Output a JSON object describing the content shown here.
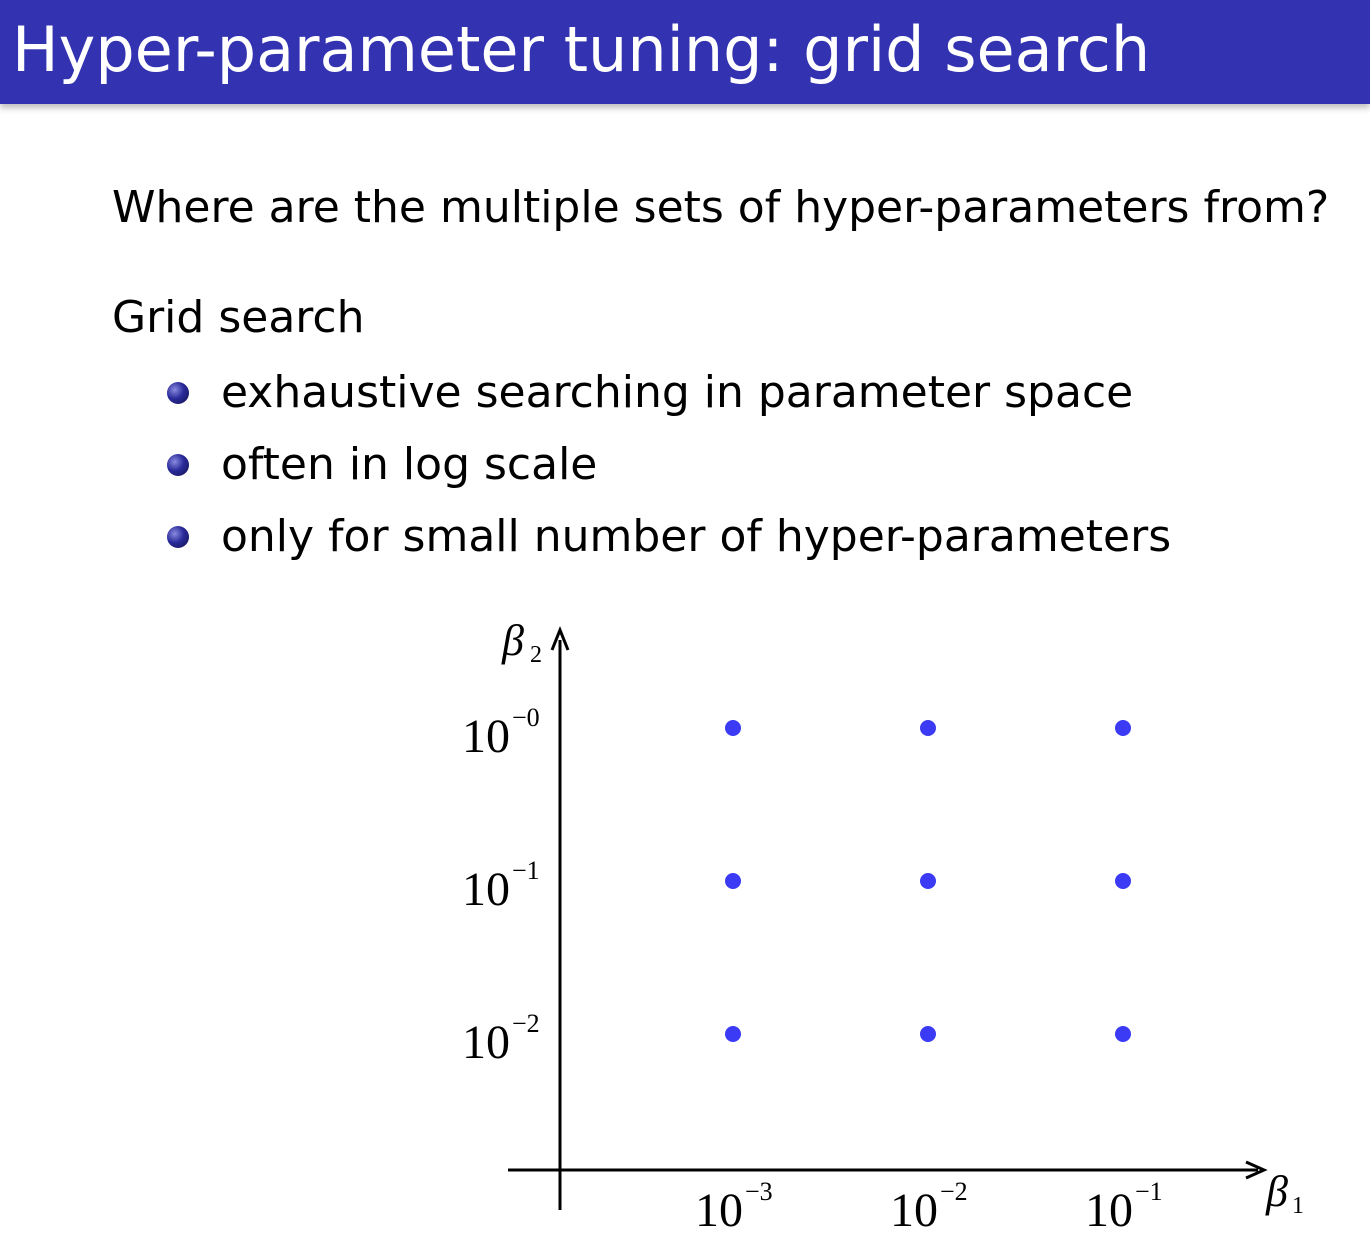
{
  "slide": {
    "title": "Hyper-parameter tuning: grid search",
    "question": "Where are the multiple sets of hyper-parameters from?",
    "subheading": "Grid search",
    "bullets": [
      "exhaustive searching in parameter space",
      "often in log scale",
      "only for small number of hyper-parameters"
    ],
    "colors": {
      "header": "#3333b2",
      "title_text": "#ffffff",
      "points": "#3b3bf5"
    }
  },
  "chart_data": {
    "type": "scatter",
    "xlabel": "β",
    "xlabel_sub": "1",
    "ylabel": "β",
    "ylabel_sub": "2",
    "x_scale": "log",
    "y_scale": "log",
    "x_ticks": [
      {
        "value": 0.001,
        "base": "10",
        "exp": "−3"
      },
      {
        "value": 0.01,
        "base": "10",
        "exp": "−2"
      },
      {
        "value": 0.1,
        "base": "10",
        "exp": "−1"
      }
    ],
    "y_ticks": [
      {
        "value": 0.01,
        "base": "10",
        "exp": "−2"
      },
      {
        "value": 0.1,
        "base": "10",
        "exp": "−1"
      },
      {
        "value": 1,
        "base": "10",
        "exp": "−0"
      }
    ],
    "points": [
      {
        "x": 0.001,
        "y": 1
      },
      {
        "x": 0.01,
        "y": 1
      },
      {
        "x": 0.1,
        "y": 1
      },
      {
        "x": 0.001,
        "y": 0.1
      },
      {
        "x": 0.01,
        "y": 0.1
      },
      {
        "x": 0.1,
        "y": 0.1
      },
      {
        "x": 0.001,
        "y": 0.01
      },
      {
        "x": 0.01,
        "y": 0.01
      },
      {
        "x": 0.1,
        "y": 0.01
      }
    ],
    "grid": false,
    "legend": "none"
  }
}
